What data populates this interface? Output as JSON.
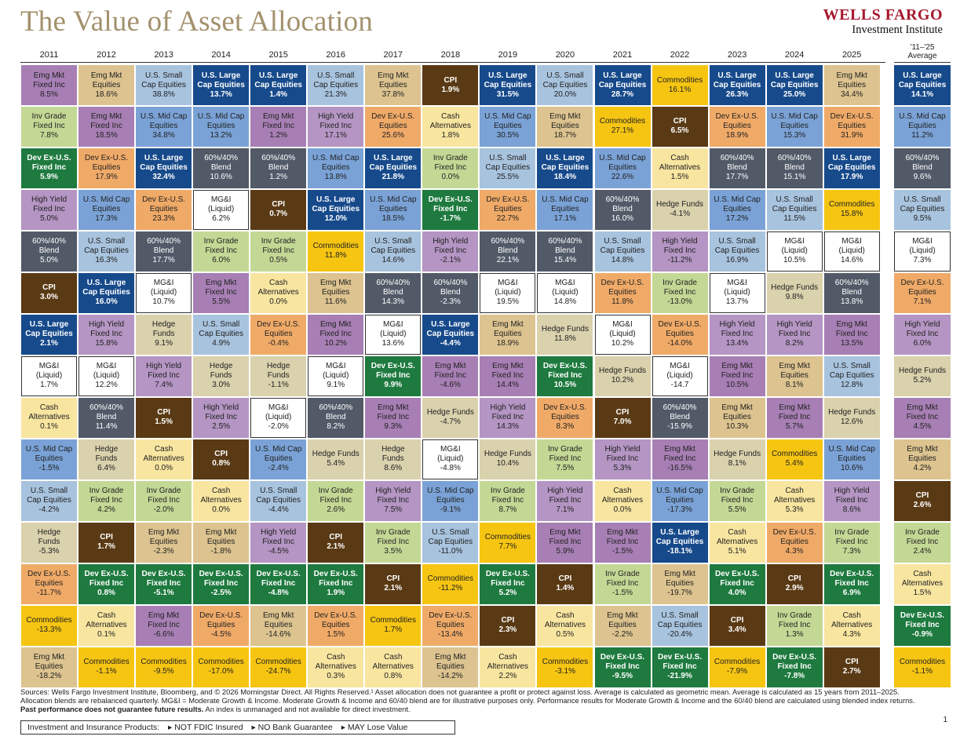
{
  "header": {
    "title": "The Value of Asset Allocation",
    "brand_line1": "WELLS FARGO",
    "brand_line2": "Investment Institute"
  },
  "colors": {
    "Emg Mkt Fixed Inc": "#a77fb4",
    "Emg Mkt Equities": "#dcc38f",
    "U.S. Small Cap Equities": "#a8c3de",
    "U.S. Large Cap Equities": "#174a8b",
    "CPI": "#5a3a14",
    "Commodities": "#f6c512",
    "Inv Grade Fixed Inc": "#c4d895",
    "Cash Alternatives": "#f8e5a0",
    "U.S. Mid Cap Equities": "#7aa2d6",
    "High Yield Fixed Inc": "#b495c3",
    "Dev Ex-U.S. Equities": "#f0aa68",
    "Dev Ex-U.S. Fixed Inc": "#1e7a3f",
    "60%/40% Blend": "#525a68",
    "MG&I (Liquid)": "#ffffff",
    "Hedge Funds": "#dad1ad"
  },
  "chart_data": {
    "type": "table",
    "title": "The Value of Asset Allocation",
    "columns": [
      "2011",
      "2012",
      "2013",
      "2014",
      "2015",
      "2016",
      "2017",
      "2018",
      "2019",
      "2020",
      "2021",
      "2022",
      "2023",
      "2024",
      "2025"
    ],
    "average_label": "'11–'25\nAverage",
    "years": [
      [
        [
          "Emg Mkt\nFixed Inc",
          "8.5%"
        ],
        [
          "Inv Grade\nFixed Inc",
          "7.8%"
        ],
        [
          "Dev Ex-U.S.\nFixed Inc",
          "5.9%"
        ],
        [
          "High Yield\nFixed Inc",
          "5.0%"
        ],
        [
          "60%/40%\nBlend",
          "5.0%"
        ],
        [
          "CPI",
          "3.0%"
        ],
        [
          "U.S. Large\nCap Equities",
          "2.1%"
        ],
        [
          "MG&I\n(Liquid)",
          "1.7%"
        ],
        [
          "Cash\nAlternatives",
          "0.1%"
        ],
        [
          "U.S. Mid Cap\nEquities",
          "-1.5%"
        ],
        [
          "U.S. Small\nCap Equities",
          "-4.2%"
        ],
        [
          "Hedge\nFunds",
          "-5.3%"
        ],
        [
          "Dev Ex-U.S.\nEquities",
          "-11.7%"
        ],
        [
          "Commodities",
          "-13.3%"
        ],
        [
          "Emg Mkt\nEquities",
          "-18.2%"
        ]
      ],
      [
        [
          "Emg Mkt\nEquities",
          "18.6%"
        ],
        [
          "Emg Mkt\nFixed Inc",
          "18.5%"
        ],
        [
          "Dev Ex-U.S.\nEquities",
          "17.9%"
        ],
        [
          "U.S. Mid Cap\nEquities",
          "17.3%"
        ],
        [
          "U.S. Small\nCap Equities",
          "16.3%"
        ],
        [
          "U.S. Large\nCap Equities",
          "16.0%"
        ],
        [
          "High Yield\nFixed Inc",
          "15.8%"
        ],
        [
          "MG&I\n(Liquid)",
          "12.2%"
        ],
        [
          "60%/40%\nBlend",
          "11.4%"
        ],
        [
          "Hedge\nFunds",
          "6.4%"
        ],
        [
          "Inv Grade\nFixed Inc",
          "4.2%"
        ],
        [
          "CPI",
          "1.7%"
        ],
        [
          "Dev Ex-U.S.\nFixed Inc",
          "0.8%"
        ],
        [
          "Cash\nAlternatives",
          "0.1%"
        ],
        [
          "Commodities",
          "-1.1%"
        ]
      ],
      [
        [
          "U.S. Small\nCap Equities",
          "38.8%"
        ],
        [
          "U.S. Mid Cap\nEquities",
          "34.8%"
        ],
        [
          "U.S. Large\nCap Equities",
          "32.4%"
        ],
        [
          "Dev Ex-U.S.\nEquities",
          "23.3%"
        ],
        [
          "60%/40%\nBlend",
          "17.7%"
        ],
        [
          "MG&I\n(Liquid)",
          "10.7%"
        ],
        [
          "Hedge\nFunds",
          "9.1%"
        ],
        [
          "High Yield\nFixed Inc",
          "7.4%"
        ],
        [
          "CPI",
          "1.5%"
        ],
        [
          "Cash\nAlternatives",
          "0.0%"
        ],
        [
          "Inv Grade\nFixed Inc",
          "-2.0%"
        ],
        [
          "Emg Mkt\nEquities",
          "-2.3%"
        ],
        [
          "Dev Ex-U.S.\nFixed Inc",
          "-5.1%"
        ],
        [
          "Emg Mkt\nFixed Inc",
          "-6.6%"
        ],
        [
          "Commodities",
          "-9.5%"
        ]
      ],
      [
        [
          "U.S. Large\nCap Equities",
          "13.7%"
        ],
        [
          "U.S. Mid Cap\nEquities",
          "13.2%"
        ],
        [
          "60%/40%\nBlend",
          "10.6%"
        ],
        [
          "MG&I\n(Liquid)",
          "6.2%"
        ],
        [
          "Inv Grade\nFixed Inc",
          "6.0%"
        ],
        [
          "Emg Mkt\nFixed Inc",
          "5.5%"
        ],
        [
          "U.S. Small\nCap Equities",
          "4.9%"
        ],
        [
          "Hedge\nFunds",
          "3.0%"
        ],
        [
          "High Yield\nFixed Inc",
          "2.5%"
        ],
        [
          "CPI",
          "0.8%"
        ],
        [
          "Cash\nAlternatives",
          "0.0%"
        ],
        [
          "Emg Mkt\nEquities",
          "-1.8%"
        ],
        [
          "Dev Ex-U.S.\nFixed Inc",
          "-2.5%"
        ],
        [
          "Dev Ex-U.S.\nEquities",
          "-4.5%"
        ],
        [
          "Commodities",
          "-17.0%"
        ]
      ],
      [
        [
          "U.S. Large\nCap Equities",
          "1.4%"
        ],
        [
          "Emg Mkt\nFixed Inc",
          "1.2%"
        ],
        [
          "60%/40%\nBlend",
          "1.2%"
        ],
        [
          "CPI",
          "0.7%"
        ],
        [
          "Inv Grade\nFixed Inc",
          "0.5%"
        ],
        [
          "Cash\nAlternatives",
          "0.0%"
        ],
        [
          "Dev Ex-U.S.\nEquities",
          "-0.4%"
        ],
        [
          "Hedge\nFunds",
          "-1.1%"
        ],
        [
          "MG&I\n(Liquid)",
          "-2.0%"
        ],
        [
          "U.S. Mid Cap\nEquities",
          "-2.4%"
        ],
        [
          "U.S. Small\nCap Equities",
          "-4.4%"
        ],
        [
          "High Yield\nFixed Inc",
          "-4.5%"
        ],
        [
          "Dev Ex-U.S.\nFixed Inc",
          "-4.8%"
        ],
        [
          "Emg Mkt\nEquities",
          "-14.6%"
        ],
        [
          "Commodities",
          "-24.7%"
        ]
      ],
      [
        [
          "U.S. Small\nCap Equities",
          "21.3%"
        ],
        [
          "High Yield\nFixed Inc",
          "17.1%"
        ],
        [
          "U.S. Mid Cap\nEquities",
          "13.8%"
        ],
        [
          "U.S. Large\nCap Equities",
          "12.0%"
        ],
        [
          "Commodities",
          "11.8%"
        ],
        [
          "Emg Mkt\nEquities",
          "11.6%"
        ],
        [
          "Emg Mkt\nFixed Inc",
          "10.2%"
        ],
        [
          "MG&I\n(Liquid)",
          "9.1%"
        ],
        [
          "60%/40%\nBlend",
          "8.2%"
        ],
        [
          "Hedge Funds",
          "5.4%"
        ],
        [
          "Inv Grade\nFixed Inc",
          "2.6%"
        ],
        [
          "CPI",
          "2.1%"
        ],
        [
          "Dev Ex-U.S.\nFixed Inc",
          "1.9%"
        ],
        [
          "Dev Ex-U.S.\nEquities",
          "1.5%"
        ],
        [
          "Cash\nAlternatives",
          "0.3%"
        ]
      ],
      [
        [
          "Emg Mkt\nEquities",
          "37.8%"
        ],
        [
          "Dev Ex-U.S.\nEquities",
          "25.6%"
        ],
        [
          "U.S. Large\nCap Equities",
          "21.8%"
        ],
        [
          "U.S. Mid Cap\nEquities",
          "18.5%"
        ],
        [
          "U.S. Small\nCap Equities",
          "14.6%"
        ],
        [
          "60%/40%\nBlend",
          "14.3%"
        ],
        [
          "MG&I\n(Liquid)",
          "13.6%"
        ],
        [
          "Dev Ex-U.S.\nFixed Inc",
          "9.9%"
        ],
        [
          "Emg Mkt\nFixed Inc",
          "9.3%"
        ],
        [
          "Hedge\nFunds",
          "8.6%"
        ],
        [
          "High Yield\nFixed Inc",
          "7.5%"
        ],
        [
          "Inv Grade\nFixed Inc",
          "3.5%"
        ],
        [
          "CPI",
          "2.1%"
        ],
        [
          "Commodities",
          "1.7%"
        ],
        [
          "Cash\nAlternatives",
          "0.8%"
        ]
      ],
      [
        [
          "CPI",
          "1.9%"
        ],
        [
          "Cash\nAlternatives",
          "1.8%"
        ],
        [
          "Inv Grade\nFixed Inc",
          "0.0%"
        ],
        [
          "Dev Ex-U.S.\nFixed Inc",
          "-1.7%"
        ],
        [
          "High Yield\nFixed Inc",
          "-2.1%"
        ],
        [
          "60%/40%\nBlend",
          "-2.3%"
        ],
        [
          "U.S. Large\nCap Equities",
          "-4.4%"
        ],
        [
          "Emg Mkt\nFixed Inc",
          "-4.6%"
        ],
        [
          "Hedge Funds",
          "-4.7%"
        ],
        [
          "MG&I\n(Liquid)",
          "-4.8%"
        ],
        [
          "U.S. Mid Cap\nEquities",
          "-9.1%"
        ],
        [
          "U.S. Small\nCap Equities",
          "-11.0%"
        ],
        [
          "Commodities",
          "-11.2%"
        ],
        [
          "Dev Ex-U.S.\nEquities",
          "-13.4%"
        ],
        [
          "Emg Mkt\nEquities",
          "-14.2%"
        ]
      ],
      [
        [
          "U.S. Large\nCap Equities",
          "31.5%"
        ],
        [
          "U.S. Mid Cap\nEquities",
          "30.5%"
        ],
        [
          "U.S. Small\nCap Equities",
          "25.5%"
        ],
        [
          "Dev Ex-U.S.\nEquities",
          "22.7%"
        ],
        [
          "60%/40%\nBlend",
          "22.1%"
        ],
        [
          "MG&I\n(Liquid)",
          "19.5%"
        ],
        [
          "Emg Mkt\nEquities",
          "18.9%"
        ],
        [
          "Emg Mkt\nFixed Inc",
          "14.4%"
        ],
        [
          "High Yield\nFixed Inc",
          "14.3%"
        ],
        [
          "Hedge Funds",
          "10.4%"
        ],
        [
          "Inv Grade\nFixed Inc",
          "8.7%"
        ],
        [
          "Commodities",
          "7.7%"
        ],
        [
          "Dev Ex-U.S.\nFixed Inc",
          "5.2%"
        ],
        [
          "CPI",
          "2.3%"
        ],
        [
          "Cash\nAlternatives",
          "2.2%"
        ]
      ],
      [
        [
          "U.S. Small\nCap Equities",
          "20.0%"
        ],
        [
          "Emg Mkt\nEquities",
          "18.7%"
        ],
        [
          "U.S. Large\nCap Equities",
          "18.4%"
        ],
        [
          "U.S. Mid Cap\nEquities",
          "17.1%"
        ],
        [
          "60%/40%\nBlend",
          "15.4%"
        ],
        [
          "MG&I\n(Liquid)",
          "14.8%"
        ],
        [
          "Hedge Funds",
          "11.8%"
        ],
        [
          "Dev Ex-U.S.\nFixed Inc",
          "10.5%"
        ],
        [
          "Dev Ex-U.S.\nEquities",
          "8.3%"
        ],
        [
          "Inv Grade\nFixed Inc",
          "7.5%"
        ],
        [
          "High Yield\nFixed Inc",
          "7.1%"
        ],
        [
          "Emg Mkt\nFixed Inc",
          "5.9%"
        ],
        [
          "CPI",
          "1.4%"
        ],
        [
          "Cash\nAlternatives",
          "0.5%"
        ],
        [
          "Commodities",
          "-3.1%"
        ]
      ],
      [
        [
          "U.S. Large\nCap Equities",
          "28.7%"
        ],
        [
          "Commodities",
          "27.1%"
        ],
        [
          "U.S. Mid Cap\nEquities",
          "22.6%"
        ],
        [
          "60%/40%\nBlend",
          "16.0%"
        ],
        [
          "U.S. Small\nCap Equities",
          "14.8%"
        ],
        [
          "Dev Ex-U.S.\nEquities",
          "11.8%"
        ],
        [
          "MG&I\n(Liquid)",
          "10.2%"
        ],
        [
          "Hedge Funds",
          "10.2%"
        ],
        [
          "CPI",
          "7.0%"
        ],
        [
          "High Yield\nFixed Inc",
          "5.3%"
        ],
        [
          "Cash\nAlternatives",
          "0.0%"
        ],
        [
          "Emg Mkt\nFixed Inc",
          "-1.5%"
        ],
        [
          "Inv Grade\nFixed Inc",
          "-1.5%"
        ],
        [
          "Emg Mkt\nEquities",
          "-2.2%"
        ],
        [
          "Dev Ex-U.S.\nFixed Inc",
          "-9.5%"
        ]
      ],
      [
        [
          "Commodities",
          "16.1%"
        ],
        [
          "CPI",
          "6.5%"
        ],
        [
          "Cash\nAlternatives",
          "1.5%"
        ],
        [
          "Hedge Funds",
          "-4.1%"
        ],
        [
          "High Yield\nFixed Inc",
          "-11.2%"
        ],
        [
          "Inv Grade\nFixed Inc",
          "-13.0%"
        ],
        [
          "Dev Ex-U.S.\nEquities",
          "-14.0%"
        ],
        [
          "MG&I\n(Liquid)",
          "-14.7"
        ],
        [
          "60%/40%\nBlend",
          "-15.9%"
        ],
        [
          "Emg Mkt\nFixed Inc",
          "-16.5%"
        ],
        [
          "U.S. Mid Cap\nEquities",
          "-17.3%"
        ],
        [
          "U.S. Large\nCap Equities",
          "-18.1%"
        ],
        [
          "Emg Mkt\nEquities",
          "-19.7%"
        ],
        [
          "U.S. Small\nCap Equities",
          "-20.4%"
        ],
        [
          "Dev Ex-U.S.\nFixed Inc",
          "-21.9%"
        ]
      ],
      [
        [
          "U.S. Large\nCap Equities",
          "26.3%"
        ],
        [
          "Dev Ex-U.S.\nEquities",
          "18.9%"
        ],
        [
          "60%/40%\nBlend",
          "17.7%"
        ],
        [
          "U.S. Mid Cap\nEquities",
          "17.2%"
        ],
        [
          "U.S. Small\nCap Equities",
          "16.9%"
        ],
        [
          "MG&I\n(Liquid)",
          "13.7%"
        ],
        [
          "High Yield\nFixed Inc",
          "13.4%"
        ],
        [
          "Emg Mkt\nFixed Inc",
          "10.5%"
        ],
        [
          "Emg Mkt\nEquities",
          "10.3%"
        ],
        [
          "Hedge Funds",
          "8.1%"
        ],
        [
          "Inv Grade\nFixed Inc",
          "5.5%"
        ],
        [
          "Cash\nAlternatives",
          "5.1%"
        ],
        [
          "Dev Ex-U.S.\nFixed Inc",
          "4.0%"
        ],
        [
          "CPI",
          "3.4%"
        ],
        [
          "Commodities",
          "-7.9%"
        ]
      ],
      [
        [
          "U.S. Large\nCap Equities",
          "25.0%"
        ],
        [
          "U.S. Mid Cap\nEquities",
          "15.3%"
        ],
        [
          "60%/40%\nBlend",
          "15.1%"
        ],
        [
          "U.S. Small\nCap Equities",
          "11.5%"
        ],
        [
          "MG&I\n(Liquid)",
          "10.5%"
        ],
        [
          "Hedge Funds",
          "9.8%"
        ],
        [
          "High Yield\nFixed Inc",
          "8.2%"
        ],
        [
          "Emg Mkt\nEquities",
          "8.1%"
        ],
        [
          "Emg Mkt\nFixed Inc",
          "5.7%"
        ],
        [
          "Commodities",
          "5.4%"
        ],
        [
          "Cash\nAlternatives",
          "5.3%"
        ],
        [
          "Dev Ex-U.S.\nEquities",
          "4.3%"
        ],
        [
          "CPI",
          "2.9%"
        ],
        [
          "Inv Grade\nFixed Inc",
          "1.3%"
        ],
        [
          "Dev Ex-U.S.\nFixed Inc",
          "-7.8%"
        ]
      ],
      [
        [
          "Emg Mkt\nEquities",
          "34.4%"
        ],
        [
          "Dev Ex-U.S.\nEquities",
          "31.9%"
        ],
        [
          "U.S. Large\nCap Equities",
          "17.9%"
        ],
        [
          "Commodities",
          "15.8%"
        ],
        [
          "MG&I\n(Liquid)",
          "14.6%"
        ],
        [
          "60%/40%\nBlend",
          "13.8%"
        ],
        [
          "Emg Mkt\nFixed Inc",
          "13.5%"
        ],
        [
          "U.S. Small\nCap Equities",
          "12.8%"
        ],
        [
          "Hedge Funds",
          "12.6%"
        ],
        [
          "U.S. Mid Cap\nEquities",
          "10.6%"
        ],
        [
          "High Yield\nFixed Inc",
          "8.6%"
        ],
        [
          "Inv Grade\nFixed Inc",
          "7.3%"
        ],
        [
          "Dev Ex-U.S.\nFixed Inc",
          "6.9%"
        ],
        [
          "Cash\nAlternatives",
          "4.3%"
        ],
        [
          "CPI",
          "2.7%"
        ]
      ]
    ],
    "average": [
      [
        "U.S. Large\nCap Equities",
        "14.1%"
      ],
      [
        "U.S. Mid Cap\nEquities",
        "11.2%"
      ],
      [
        "60%/40%\nBlend",
        "9.6%"
      ],
      [
        "U.S. Small\nCap Equities",
        "9.5%"
      ],
      [
        "MG&I\n(Liquid)",
        "7.3%"
      ],
      [
        "Dev Ex-U.S.\nEquities",
        "7.1%"
      ],
      [
        "High Yield\nFixed Inc",
        "6.0%"
      ],
      [
        "Hedge Funds",
        "5.2%"
      ],
      [
        "Emg Mkt\nFixed Inc",
        "4.5%"
      ],
      [
        "Emg Mkt\nEquities",
        "4.2%"
      ],
      [
        "CPI",
        "2.6%"
      ],
      [
        "Inv Grade\nFixed Inc",
        "2.4%"
      ],
      [
        "Cash\nAlternatives",
        "1.5%"
      ],
      [
        "Dev Ex-U.S.\nFixed Inc",
        "-0.9%"
      ],
      [
        "Commodities",
        "-1.1%"
      ]
    ]
  },
  "footer": {
    "sources": "Sources: Wells Fargo Investment Institute, Bloomberg, and © 2026 Morningstar Direct. All Rights Reserved.¹ Asset allocation does not guarantee a profit or protect against loss. Average is calculated as geometric mean. Average is calculated as 15 years from 2011–2025.",
    "blends": "Allocation blends are rebalanced quarterly. MG&I = Moderate Growth & Income. Moderate Growth & Income and 60/40 blend are for illustrative purposes only. Performance results for Moderate Growth & Income and the 60/40 blend are calculated using blended index returns.",
    "past_bold": "Past performance does not guarantee future results.",
    "past_rest": " An index is unmanaged and not available for direct investment.",
    "page_number": "1",
    "disclaimer_label": "Investment and Insurance Products:",
    "disclaimer_items": [
      "▸ NOT FDIC Insured",
      "▸ NO Bank Guarantee",
      "▸ MAY Lose Value"
    ]
  }
}
